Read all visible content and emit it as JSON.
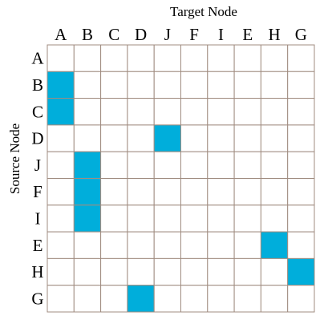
{
  "x_axis_title": "Target Node",
  "y_axis_title": "Source Node",
  "column_labels": [
    "A",
    "B",
    "C",
    "D",
    "J",
    "F",
    "I",
    "E",
    "H",
    "G"
  ],
  "row_labels": [
    "A",
    "B",
    "C",
    "D",
    "J",
    "F",
    "I",
    "E",
    "H",
    "G"
  ],
  "edges": [
    {
      "source": "B",
      "target": "A"
    },
    {
      "source": "C",
      "target": "A"
    },
    {
      "source": "D",
      "target": "J"
    },
    {
      "source": "J",
      "target": "B"
    },
    {
      "source": "F",
      "target": "B"
    },
    {
      "source": "I",
      "target": "B"
    },
    {
      "source": "E",
      "target": "H"
    },
    {
      "source": "H",
      "target": "G"
    },
    {
      "source": "G",
      "target": "D"
    }
  ],
  "colors": {
    "filled_cell": "#00aedb",
    "empty_cell": "#ffffff",
    "grid_line": "#a08c80",
    "text": "#000000"
  }
}
